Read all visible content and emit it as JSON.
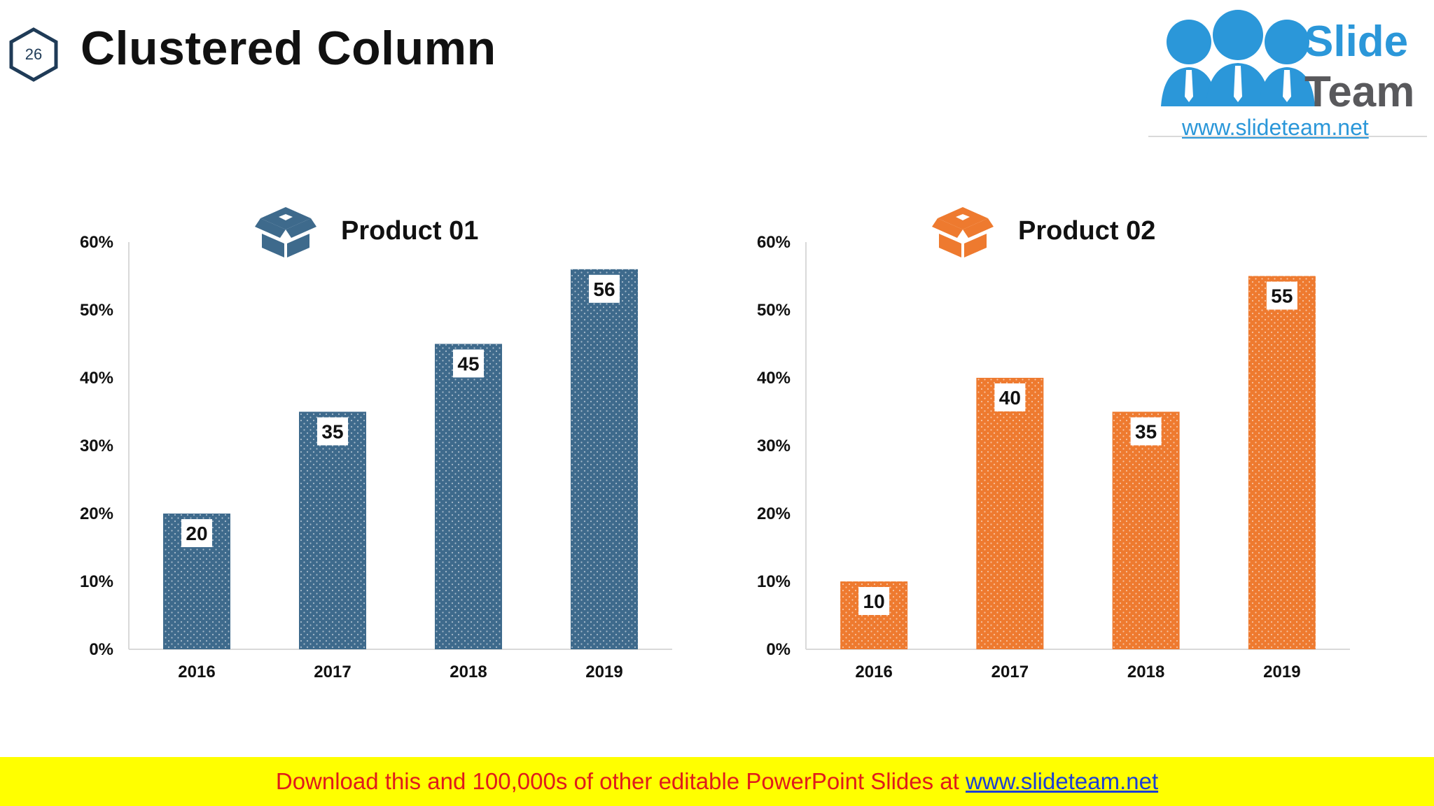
{
  "slide": {
    "number": "26",
    "title": "Clustered Column"
  },
  "logo": {
    "brand_line1": "Slide",
    "brand_line2": "Team",
    "url": "www.slideteam.net",
    "color_blue": "#2b97d9",
    "color_gray": "#59595c"
  },
  "chart_data": [
    {
      "type": "bar",
      "title": "Product 01",
      "icon": "open-box-icon",
      "color": "#3e6a8c",
      "categories": [
        "2016",
        "2017",
        "2018",
        "2019"
      ],
      "values": [
        20,
        35,
        45,
        56
      ],
      "data_labels": [
        "20",
        "35",
        "45",
        "56"
      ],
      "ylim": [
        0,
        60
      ],
      "yticks": [
        "0%",
        "10%",
        "20%",
        "30%",
        "40%",
        "50%",
        "60%"
      ],
      "grid": false,
      "legend": "none"
    },
    {
      "type": "bar",
      "title": "Product 02",
      "icon": "open-box-icon",
      "color": "#ee7a2f",
      "categories": [
        "2016",
        "2017",
        "2018",
        "2019"
      ],
      "values": [
        10,
        40,
        35,
        55
      ],
      "data_labels": [
        "10",
        "40",
        "35",
        "55"
      ],
      "ylim": [
        0,
        60
      ],
      "yticks": [
        "0%",
        "10%",
        "20%",
        "30%",
        "40%",
        "50%",
        "60%"
      ],
      "grid": false,
      "legend": "none"
    }
  ],
  "banner": {
    "text": "Download this and 100,000s of other editable PowerPoint Slides at ",
    "link": "www.slideteam.net",
    "background": "#ffff00",
    "text_color": "#e01b1b",
    "link_color": "#1b3fd6"
  }
}
